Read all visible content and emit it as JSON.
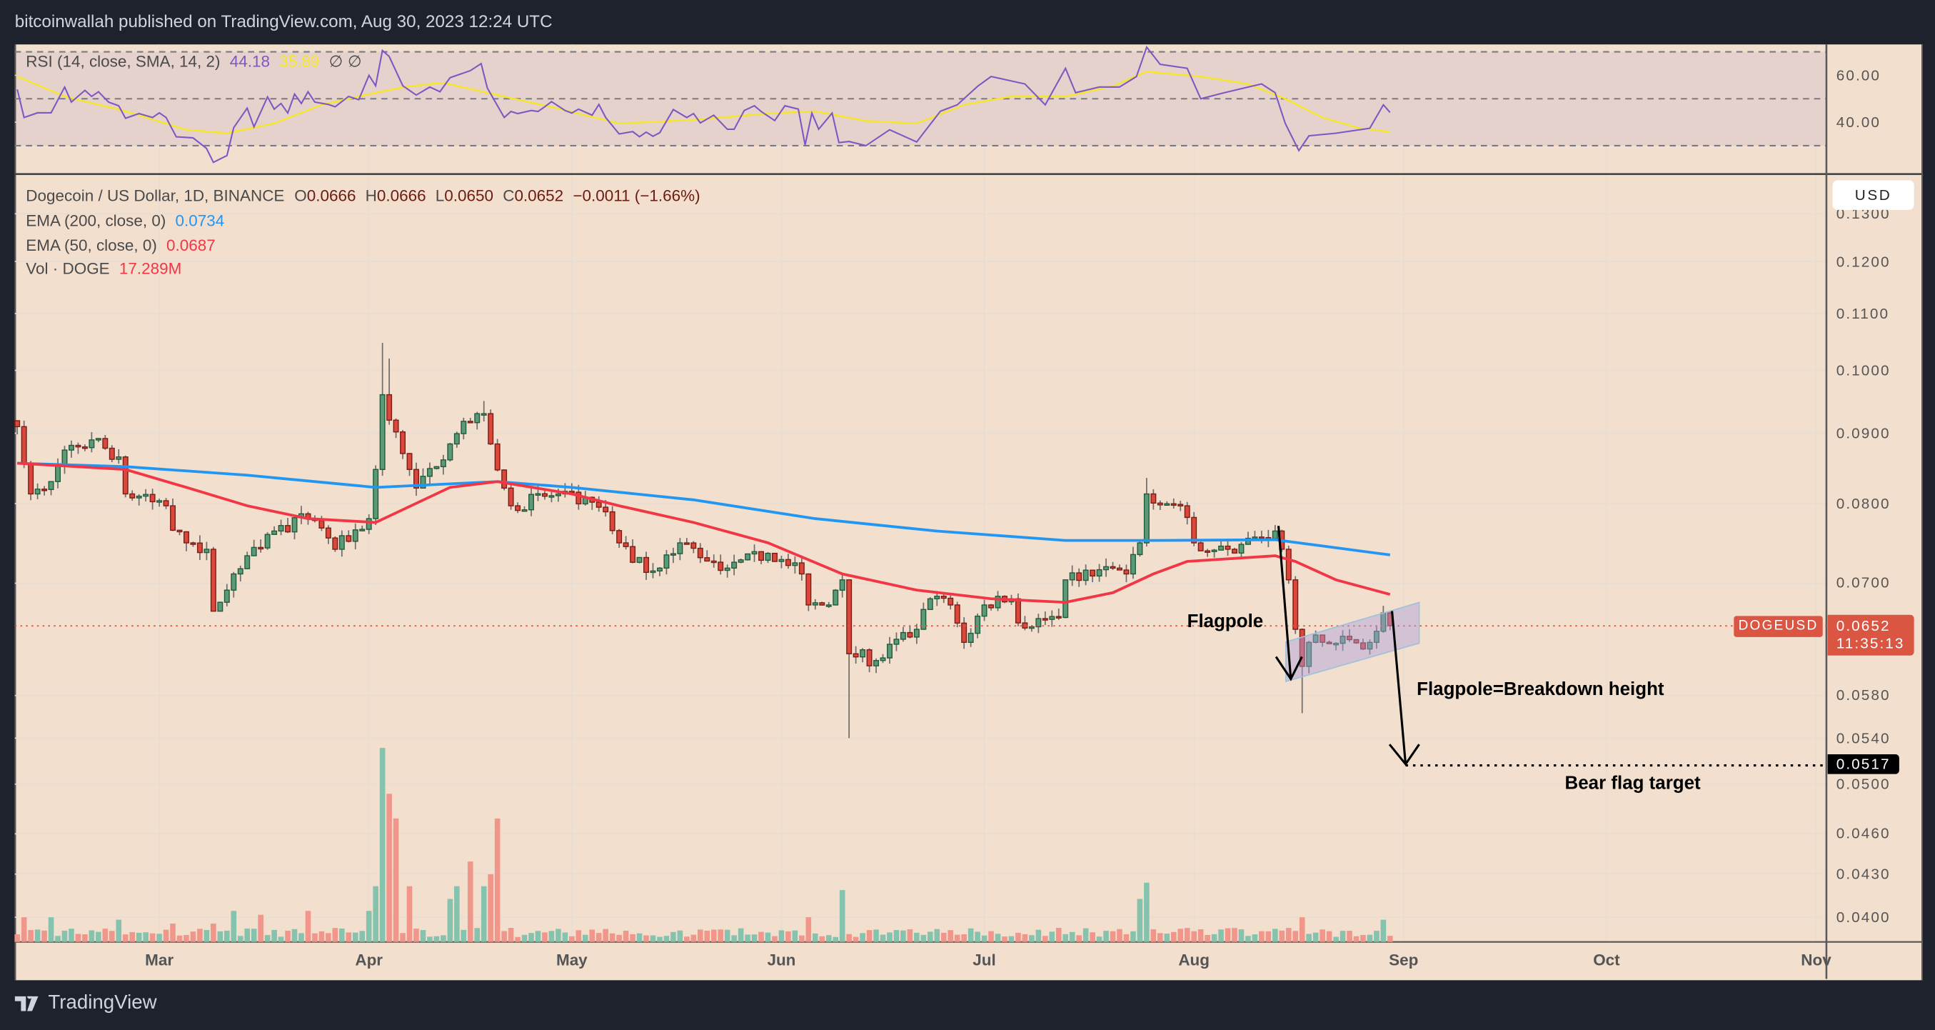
{
  "header": {
    "published": "bitcoinwallah published on TradingView.com, Aug 30, 2023 12:24 UTC"
  },
  "rsi_legend": {
    "label": "RSI (14, close, SMA, 14, 2)",
    "rsi": "44.18",
    "sma": "35.89",
    "na1": "∅",
    "na2": "∅"
  },
  "legend": {
    "symbol": "Dogecoin / US Dollar, 1D, BINANCE",
    "o_label": "O",
    "o": "0.0666",
    "h_label": "H",
    "h": "0.0666",
    "l_label": "L",
    "l": "0.0650",
    "c_label": "C",
    "c": "0.0652",
    "change": "−0.0011 (−1.66%)",
    "ema200_label": "EMA (200, close, 0)",
    "ema200": "0.0734",
    "ema50_label": "EMA (50, close, 0)",
    "ema50": "0.0687",
    "vol_label": "Vol · DOGE",
    "vol": "17.289M"
  },
  "axis": {
    "currency": "USD",
    "symbol_tag": "DOGEUSD",
    "last_price": "0.0652",
    "countdown": "11:35:13",
    "target_price": "0.0517"
  },
  "annotations": {
    "flagpole": "Flagpole",
    "breakdown": "Flagpole=Breakdown height",
    "target": "Bear flag target"
  },
  "footer": {
    "brand": "TradingView"
  },
  "colors": {
    "up": "#5b9a78",
    "down": "#d9483b",
    "ema200": "#2196f3",
    "ema50": "#f23645",
    "rsi": "#7e57c2",
    "rsi_sma": "#f5e62a",
    "vol_up": "#86c3ae",
    "vol_down": "#f0968a"
  },
  "chart_data": {
    "type": "candlestick",
    "title": "Dogecoin / US Dollar, 1D, BINANCE",
    "x_unit": "day index (0 = Feb 8, 2023; 203 = Aug 30, 2023)",
    "price_scale": "log",
    "price_ticks": [
      0.13,
      0.12,
      0.11,
      0.1,
      0.09,
      0.08,
      0.07,
      0.058,
      0.054,
      0.05,
      0.046,
      0.043,
      0.04
    ],
    "price_tick_labels": [
      "0.1300",
      "0.1200",
      "0.1100",
      "0.1000",
      "0.0900",
      "0.0800",
      "0.0700",
      "0.0580",
      "0.0540",
      "0.0500",
      "0.0460",
      "0.0430",
      "0.0400"
    ],
    "months": [
      {
        "label": "Mar",
        "day": 21
      },
      {
        "label": "Apr",
        "day": 52
      },
      {
        "label": "May",
        "day": 82
      },
      {
        "label": "Jun",
        "day": 113
      },
      {
        "label": "Jul",
        "day": 143
      },
      {
        "label": "Aug",
        "day": 174
      },
      {
        "label": "Sep",
        "day": 205
      },
      {
        "label": "Oct",
        "day": 235
      },
      {
        "label": "Nov",
        "day": 266
      }
    ],
    "close_keypoints": [
      [
        0,
        0.091
      ],
      [
        2,
        0.0813
      ],
      [
        5,
        0.083
      ],
      [
        7,
        0.0875
      ],
      [
        11,
        0.089
      ],
      [
        15,
        0.0865
      ],
      [
        16,
        0.0813
      ],
      [
        22,
        0.0797
      ],
      [
        23,
        0.0765
      ],
      [
        25,
        0.0749
      ],
      [
        28,
        0.0741
      ],
      [
        29,
        0.0668
      ],
      [
        32,
        0.0711
      ],
      [
        34,
        0.0733
      ],
      [
        38,
        0.0764
      ],
      [
        43,
        0.078
      ],
      [
        47,
        0.0741
      ],
      [
        52,
        0.078
      ],
      [
        53,
        0.0847
      ],
      [
        54,
        0.096
      ],
      [
        56,
        0.0902
      ],
      [
        58,
        0.0847
      ],
      [
        59,
        0.0821
      ],
      [
        64,
        0.0884
      ],
      [
        68,
        0.093
      ],
      [
        69,
        0.093
      ],
      [
        70,
        0.0884
      ],
      [
        72,
        0.0821
      ],
      [
        73,
        0.0797
      ],
      [
        80,
        0.0813
      ],
      [
        87,
        0.0789
      ],
      [
        89,
        0.0749
      ],
      [
        91,
        0.0725
      ],
      [
        95,
        0.0718
      ],
      [
        98,
        0.0749
      ],
      [
        105,
        0.0718
      ],
      [
        111,
        0.0736
      ],
      [
        116,
        0.0711
      ],
      [
        117,
        0.0675
      ],
      [
        120,
        0.0675
      ],
      [
        122,
        0.0704
      ],
      [
        123,
        0.0622
      ],
      [
        127,
        0.0615
      ],
      [
        133,
        0.0648
      ],
      [
        135,
        0.0682
      ],
      [
        138,
        0.0675
      ],
      [
        140,
        0.0634
      ],
      [
        143,
        0.0675
      ],
      [
        147,
        0.0682
      ],
      [
        148,
        0.0655
      ],
      [
        154,
        0.0661
      ],
      [
        155,
        0.0704
      ],
      [
        162,
        0.0718
      ],
      [
        164,
        0.0711
      ],
      [
        166,
        0.0749
      ],
      [
        167,
        0.0813
      ],
      [
        172,
        0.0797
      ],
      [
        174,
        0.0749
      ],
      [
        179,
        0.0741
      ],
      [
        186,
        0.0764
      ],
      [
        187,
        0.0741
      ],
      [
        188,
        0.0704
      ],
      [
        189,
        0.0648
      ],
      [
        190,
        0.0609
      ],
      [
        191,
        0.0634
      ],
      [
        200,
        0.0634
      ],
      [
        202,
        0.0666
      ],
      [
        203,
        0.0652
      ]
    ],
    "notable_wicks": [
      {
        "day": 54,
        "high": 0.1047
      },
      {
        "day": 55,
        "high": 0.102
      },
      {
        "day": 123,
        "low": 0.054
      },
      {
        "day": 190,
        "low": 0.0563
      },
      {
        "day": 167,
        "high": 0.0835
      },
      {
        "day": 69,
        "high": 0.095
      }
    ],
    "ema200": [
      [
        0,
        0.0856
      ],
      [
        16,
        0.0851
      ],
      [
        34,
        0.0839
      ],
      [
        53,
        0.0822
      ],
      [
        71,
        0.083
      ],
      [
        82,
        0.0822
      ],
      [
        100,
        0.0805
      ],
      [
        118,
        0.078
      ],
      [
        136,
        0.0764
      ],
      [
        155,
        0.0752
      ],
      [
        168,
        0.0752
      ],
      [
        186,
        0.0753
      ],
      [
        203,
        0.0734
      ]
    ],
    "ema50": [
      [
        0,
        0.0856
      ],
      [
        16,
        0.0847
      ],
      [
        25,
        0.0822
      ],
      [
        34,
        0.0797
      ],
      [
        43,
        0.078
      ],
      [
        53,
        0.0775
      ],
      [
        64,
        0.0822
      ],
      [
        71,
        0.083
      ],
      [
        82,
        0.0813
      ],
      [
        89,
        0.0797
      ],
      [
        100,
        0.0775
      ],
      [
        111,
        0.0749
      ],
      [
        122,
        0.0711
      ],
      [
        133,
        0.0692
      ],
      [
        144,
        0.0682
      ],
      [
        155,
        0.0678
      ],
      [
        162,
        0.0689
      ],
      [
        168,
        0.0711
      ],
      [
        173,
        0.0726
      ],
      [
        186,
        0.0733
      ],
      [
        189,
        0.0726
      ],
      [
        195,
        0.0704
      ],
      [
        203,
        0.0687
      ]
    ],
    "volume_spikes_M": [
      [
        1,
        70
      ],
      [
        5,
        70
      ],
      [
        15,
        63
      ],
      [
        23,
        52
      ],
      [
        29,
        52
      ],
      [
        32,
        88
      ],
      [
        36,
        77
      ],
      [
        43,
        88
      ],
      [
        52,
        88
      ],
      [
        53,
        158
      ],
      [
        54,
        550
      ],
      [
        55,
        420
      ],
      [
        56,
        350
      ],
      [
        58,
        158
      ],
      [
        64,
        122
      ],
      [
        65,
        158
      ],
      [
        67,
        228
      ],
      [
        69,
        158
      ],
      [
        70,
        192
      ],
      [
        71,
        350
      ],
      [
        117,
        70
      ],
      [
        122,
        147
      ],
      [
        166,
        122
      ],
      [
        167,
        168
      ],
      [
        190,
        70
      ],
      [
        202,
        63
      ],
      [
        203,
        17.289
      ]
    ],
    "rsi": [
      [
        0,
        54
      ],
      [
        1,
        42
      ],
      [
        3,
        44
      ],
      [
        5,
        44
      ],
      [
        7,
        55
      ],
      [
        8,
        48.6
      ],
      [
        10,
        53.6
      ],
      [
        11,
        51
      ],
      [
        12,
        53
      ],
      [
        13.5,
        48.6
      ],
      [
        15,
        47
      ],
      [
        16,
        41.7
      ],
      [
        18,
        43.7
      ],
      [
        20,
        42
      ],
      [
        21,
        44
      ],
      [
        22,
        42
      ],
      [
        23.5,
        33.8
      ],
      [
        26,
        33.3
      ],
      [
        28,
        28.8
      ],
      [
        29,
        22.9
      ],
      [
        31,
        25.8
      ],
      [
        32,
        37.7
      ],
      [
        34,
        46
      ],
      [
        35,
        38
      ],
      [
        37,
        50.8
      ],
      [
        38,
        45.6
      ],
      [
        39,
        48
      ],
      [
        40,
        43.9
      ],
      [
        41,
        52
      ],
      [
        42,
        48
      ],
      [
        43,
        53
      ],
      [
        44,
        48.6
      ],
      [
        46,
        47.6
      ],
      [
        47,
        46.6
      ],
      [
        49,
        51
      ],
      [
        50.5,
        49.6
      ],
      [
        52,
        60
      ],
      [
        53,
        55.5
      ],
      [
        54,
        70.6
      ],
      [
        55,
        68
      ],
      [
        57,
        55.5
      ],
      [
        59,
        51.6
      ],
      [
        61,
        55
      ],
      [
        62.5,
        53
      ],
      [
        64,
        59
      ],
      [
        67,
        62
      ],
      [
        68.6,
        65
      ],
      [
        69.5,
        54.6
      ],
      [
        72,
        42
      ],
      [
        73,
        44.6
      ],
      [
        74,
        43.7
      ],
      [
        76,
        45
      ],
      [
        77,
        44.6
      ],
      [
        78,
        46.6
      ],
      [
        79,
        48.8
      ],
      [
        81,
        45
      ],
      [
        82,
        43.9
      ],
      [
        83,
        45.6
      ],
      [
        85,
        43
      ],
      [
        86,
        47.6
      ],
      [
        87,
        42
      ],
      [
        89,
        35
      ],
      [
        91,
        36
      ],
      [
        92,
        33.8
      ],
      [
        93,
        35.8
      ],
      [
        94,
        34
      ],
      [
        95,
        35.5
      ],
      [
        97,
        45.4
      ],
      [
        99,
        42
      ],
      [
        100,
        43.7
      ],
      [
        101,
        39.7
      ],
      [
        103,
        43
      ],
      [
        105,
        37
      ],
      [
        106,
        37
      ],
      [
        107.5,
        45
      ],
      [
        109,
        47
      ],
      [
        110,
        44.6
      ],
      [
        112,
        40.7
      ],
      [
        113.5,
        47
      ],
      [
        115.5,
        45.6
      ],
      [
        116.5,
        30.3
      ],
      [
        117.5,
        43.9
      ],
      [
        118.5,
        37
      ],
      [
        120.5,
        43.9
      ],
      [
        121.5,
        31.3
      ],
      [
        123,
        31.8
      ],
      [
        125.5,
        30
      ],
      [
        129,
        36.8
      ],
      [
        133,
        31.6
      ],
      [
        136.5,
        44.7
      ],
      [
        139,
        47.4
      ],
      [
        142,
        55.3
      ],
      [
        144,
        59.5
      ],
      [
        149,
        56.3
      ],
      [
        152,
        47.4
      ],
      [
        155,
        63
      ],
      [
        156.5,
        52.6
      ],
      [
        160,
        55
      ],
      [
        163,
        55
      ],
      [
        165.5,
        59.5
      ],
      [
        167,
        72
      ],
      [
        169,
        64.7
      ],
      [
        173,
        63
      ],
      [
        175,
        50
      ],
      [
        178.5,
        52.6
      ],
      [
        182,
        55
      ],
      [
        184,
        56.3
      ],
      [
        186,
        52.6
      ],
      [
        187.5,
        39.5
      ],
      [
        189.5,
        27.9
      ],
      [
        191,
        34.2
      ],
      [
        195,
        35.3
      ],
      [
        198.5,
        36.8
      ],
      [
        200,
        37.4
      ],
      [
        202,
        47.4
      ],
      [
        203,
        44.18
      ]
    ],
    "rsi_sma": [
      [
        0,
        59.5
      ],
      [
        7,
        51
      ],
      [
        16,
        44.7
      ],
      [
        25,
        36.8
      ],
      [
        31,
        35.3
      ],
      [
        38,
        39.5
      ],
      [
        45,
        47.4
      ],
      [
        53,
        52.6
      ],
      [
        58,
        55.3
      ],
      [
        63,
        56.8
      ],
      [
        71,
        51.6
      ],
      [
        80,
        45.8
      ],
      [
        89,
        39.5
      ],
      [
        100,
        41
      ],
      [
        111,
        43.7
      ],
      [
        118,
        44.7
      ],
      [
        125.5,
        40.5
      ],
      [
        133,
        39.5
      ],
      [
        140,
        47.4
      ],
      [
        147,
        51
      ],
      [
        155,
        51
      ],
      [
        162,
        55.3
      ],
      [
        167,
        61.6
      ],
      [
        175,
        59.5
      ],
      [
        182,
        56.3
      ],
      [
        187.5,
        50
      ],
      [
        193,
        42
      ],
      [
        198.5,
        37.4
      ],
      [
        203,
        35.89
      ]
    ],
    "rsi_ticks": [
      60,
      40
    ],
    "rsi_tick_labels": [
      "60.00",
      "40.00"
    ],
    "rsi_bands": [
      70,
      50,
      30
    ],
    "last_close": 0.0652,
    "bear_flag_target": 0.0517
  }
}
